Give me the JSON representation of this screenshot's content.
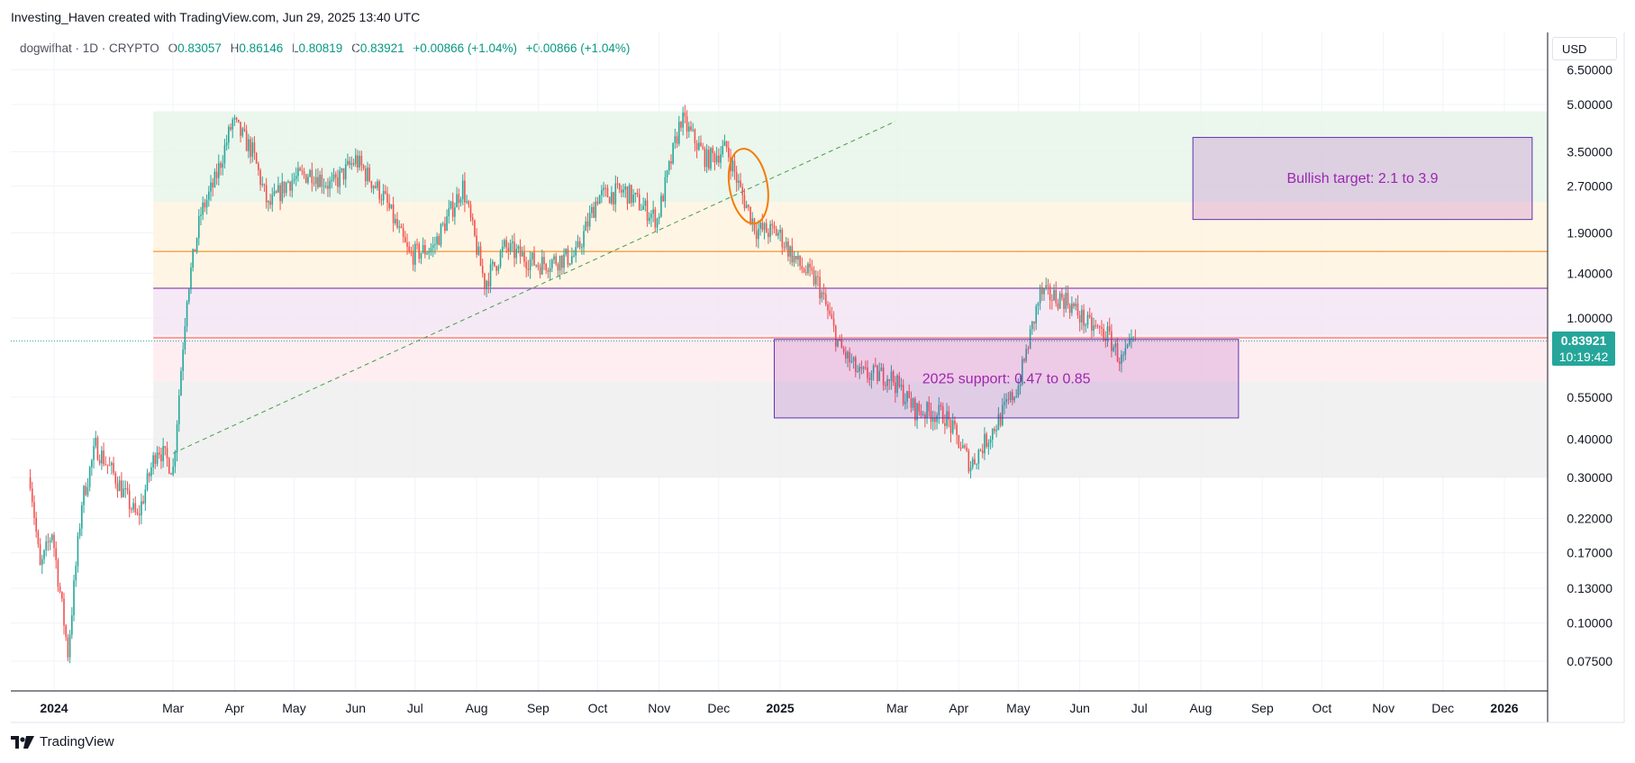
{
  "header": {
    "credit": "Investing_Haven created with TradingView.com, Jun 29, 2025 13:40 UTC"
  },
  "legend": {
    "symbol": "dogwifhat · 1D · CRYPTO",
    "o_label": "O",
    "o": "0.83057",
    "h_label": "H",
    "h": "0.86146",
    "l_label": "L",
    "l": "0.80819",
    "c_label": "C",
    "c": "0.83921",
    "change1": "+0.00866 (+1.04%)",
    "change2": "+0.00866 (+1.04%)"
  },
  "currency": "USD",
  "last_price": {
    "price": "0.83921",
    "countdown": "10:19:42"
  },
  "footer": {
    "brand": "TradingView"
  },
  "colors": {
    "up": "#26a69a",
    "down": "#ef5350",
    "accent": "#2962ff",
    "purple_box": "#9c27b0",
    "orange": "#f57c00"
  },
  "chart_data": {
    "type": "candlestick",
    "title": "dogwifhat · 1D · CRYPTO",
    "y_scale": "log",
    "y_ticks": [
      "6.50000",
      "5.00000",
      "3.50000",
      "2.70000",
      "1.90000",
      "1.40000",
      "1.00000",
      "0.55000",
      "0.40000",
      "0.30000",
      "0.22000",
      "0.17000",
      "0.13000",
      "0.10000",
      "0.07500"
    ],
    "x_ticks": [
      "2024",
      "Mar",
      "Apr",
      "May",
      "Jun",
      "Jul",
      "Aug",
      "Sep",
      "Oct",
      "Nov",
      "Dec",
      "2025",
      "Mar",
      "Apr",
      "May",
      "Jun",
      "Jul",
      "Aug",
      "Sep",
      "Oct",
      "Nov",
      "Dec",
      "2026"
    ],
    "x_tick_bold": [
      "2024",
      "2025",
      "2026"
    ],
    "last_close": 0.83921,
    "price_path": [
      {
        "date": "2023-12-20",
        "price": 0.3
      },
      {
        "date": "2023-12-25",
        "price": 0.15
      },
      {
        "date": "2023-12-31",
        "price": 0.2
      },
      {
        "date": "2024-01-08",
        "price": 0.08
      },
      {
        "date": "2024-01-15",
        "price": 0.25
      },
      {
        "date": "2024-01-22",
        "price": 0.38
      },
      {
        "date": "2024-02-01",
        "price": 0.3
      },
      {
        "date": "2024-02-12",
        "price": 0.22
      },
      {
        "date": "2024-02-22",
        "price": 0.38
      },
      {
        "date": "2024-03-01",
        "price": 0.32
      },
      {
        "date": "2024-03-08",
        "price": 1.2
      },
      {
        "date": "2024-03-15",
        "price": 2.2
      },
      {
        "date": "2024-03-22",
        "price": 2.8
      },
      {
        "date": "2024-03-31",
        "price": 4.4
      },
      {
        "date": "2024-04-10",
        "price": 3.5
      },
      {
        "date": "2024-04-18",
        "price": 2.3
      },
      {
        "date": "2024-04-28",
        "price": 2.8
      },
      {
        "date": "2024-05-10",
        "price": 3.0
      },
      {
        "date": "2024-05-20",
        "price": 2.7
      },
      {
        "date": "2024-06-01",
        "price": 3.3
      },
      {
        "date": "2024-06-15",
        "price": 2.5
      },
      {
        "date": "2024-06-28",
        "price": 1.6
      },
      {
        "date": "2024-07-10",
        "price": 1.7
      },
      {
        "date": "2024-07-25",
        "price": 2.7
      },
      {
        "date": "2024-08-05",
        "price": 1.3
      },
      {
        "date": "2024-08-15",
        "price": 1.7
      },
      {
        "date": "2024-09-01",
        "price": 1.5
      },
      {
        "date": "2024-09-20",
        "price": 1.6
      },
      {
        "date": "2024-10-01",
        "price": 2.5
      },
      {
        "date": "2024-10-15",
        "price": 2.6
      },
      {
        "date": "2024-10-31",
        "price": 2.1
      },
      {
        "date": "2024-11-12",
        "price": 4.5
      },
      {
        "date": "2024-11-25",
        "price": 3.3
      },
      {
        "date": "2024-12-05",
        "price": 3.6
      },
      {
        "date": "2024-12-12",
        "price": 2.6
      },
      {
        "date": "2024-12-20",
        "price": 1.95
      },
      {
        "date": "2024-12-31",
        "price": 1.9
      },
      {
        "date": "2025-01-10",
        "price": 1.5
      },
      {
        "date": "2025-01-20",
        "price": 1.3
      },
      {
        "date": "2025-01-31",
        "price": 0.8
      },
      {
        "date": "2025-02-10",
        "price": 0.65
      },
      {
        "date": "2025-02-25",
        "price": 0.65
      },
      {
        "date": "2025-03-10",
        "price": 0.5
      },
      {
        "date": "2025-03-25",
        "price": 0.48
      },
      {
        "date": "2025-04-07",
        "price": 0.33
      },
      {
        "date": "2025-04-20",
        "price": 0.45
      },
      {
        "date": "2025-05-01",
        "price": 0.6
      },
      {
        "date": "2025-05-12",
        "price": 1.2
      },
      {
        "date": "2025-05-25",
        "price": 1.15
      },
      {
        "date": "2025-06-05",
        "price": 0.95
      },
      {
        "date": "2025-06-15",
        "price": 0.88
      },
      {
        "date": "2025-06-22",
        "price": 0.72
      },
      {
        "date": "2025-06-29",
        "price": 0.84
      }
    ],
    "zones": [
      {
        "y_range": [
          2.4,
          4.75
        ],
        "color": "#e8f5e9"
      },
      {
        "y_range": [
          1.25,
          2.4
        ],
        "color": "#fff3e0"
      },
      {
        "y_range": [
          0.88,
          1.25
        ],
        "color": "#f3e5f5"
      },
      {
        "y_range": [
          0.62,
          0.88
        ],
        "color": "#ffebee"
      },
      {
        "y_range": [
          0.3,
          0.62
        ],
        "color": "#eeeeee"
      }
    ],
    "hlines": [
      {
        "y": 1.65,
        "color": "#f57c00"
      },
      {
        "y": 1.25,
        "color": "#7b1fa2"
      },
      {
        "y": 0.86,
        "color": "#ef5350"
      }
    ],
    "trendline": {
      "from": {
        "date": "2024-03-01",
        "price": 0.36
      },
      "to": {
        "date": "2025-02-28",
        "price": 4.4
      }
    },
    "boxes": [
      {
        "label": "Bullish target: 2.1 to 3.9",
        "x_range": [
          "2025-07-28",
          "2026-01-15"
        ],
        "y_range": [
          2.1,
          3.9
        ]
      },
      {
        "label": "2025 support: 0.47 to 0.85",
        "x_range": [
          "2024-12-29",
          "2025-08-20"
        ],
        "y_range": [
          0.47,
          0.85
        ]
      }
    ],
    "ellipse": {
      "center": {
        "date": "2024-12-16",
        "price": 2.7
      }
    }
  }
}
